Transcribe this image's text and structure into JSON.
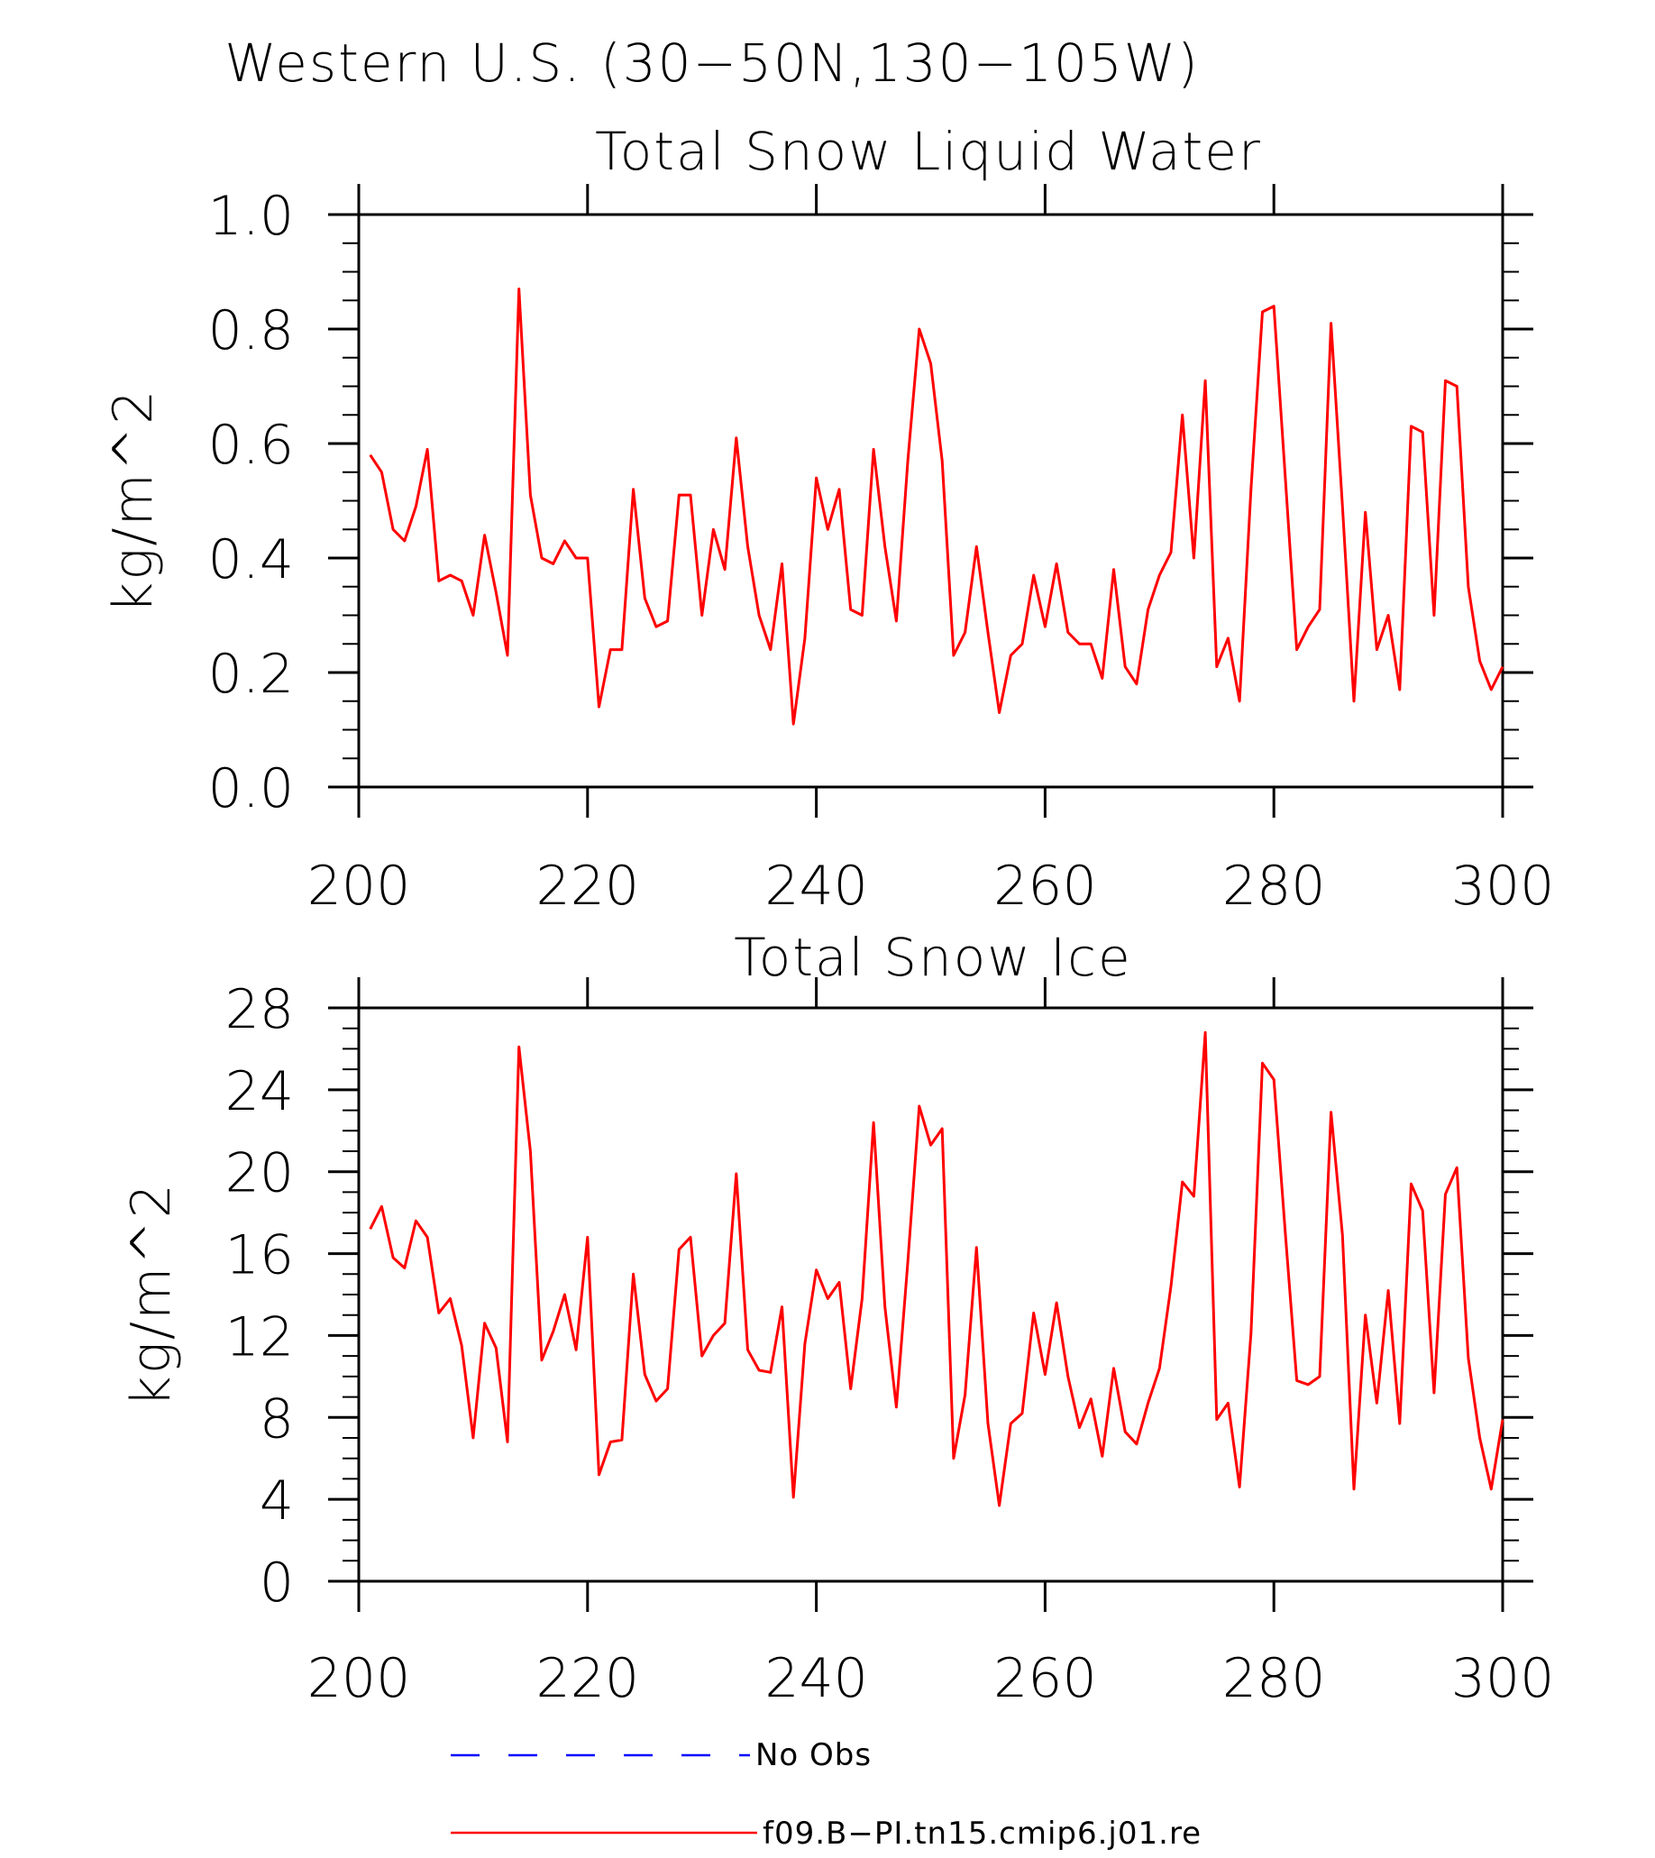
{
  "figure": {
    "title": "Western U.S. (30−50N,130−105W)"
  },
  "colors": {
    "model": "#ff0000",
    "obs": "#0000ff",
    "axis": "#000000"
  },
  "chart_data": [
    {
      "type": "line",
      "title": "Total Snow Liquid Water",
      "xlabel": "",
      "ylabel": "kg/m^2",
      "xlim": [
        200,
        300
      ],
      "ylim": [
        0,
        1.0
      ],
      "xticks": [
        200,
        220,
        240,
        260,
        280,
        300
      ],
      "yticks": [
        0,
        0.2,
        0.4,
        0.6,
        0.8,
        1.0
      ],
      "ytick_labels": [
        "0.0",
        "0.2",
        "0.4",
        "0.6",
        "0.8",
        "1.0"
      ],
      "x_start": 201,
      "x_step": 1,
      "series": [
        {
          "name": "f09.B−PI.tn15.cmip6.j01.re",
          "color": "#ff0000",
          "values": [
            0.58,
            0.55,
            0.45,
            0.43,
            0.49,
            0.59,
            0.36,
            0.37,
            0.36,
            0.3,
            0.44,
            0.34,
            0.23,
            0.87,
            0.51,
            0.4,
            0.39,
            0.43,
            0.4,
            0.4,
            0.14,
            0.24,
            0.24,
            0.52,
            0.33,
            0.28,
            0.29,
            0.51,
            0.51,
            0.3,
            0.45,
            0.38,
            0.61,
            0.42,
            0.3,
            0.24,
            0.39,
            0.11,
            0.26,
            0.54,
            0.45,
            0.52,
            0.31,
            0.3,
            0.59,
            0.42,
            0.29,
            0.57,
            0.8,
            0.74,
            0.57,
            0.23,
            0.27,
            0.42,
            0.27,
            0.13,
            0.23,
            0.25,
            0.37,
            0.28,
            0.39,
            0.27,
            0.25,
            0.25,
            0.19,
            0.38,
            0.21,
            0.18,
            0.31,
            0.37,
            0.41,
            0.65,
            0.4,
            0.71,
            0.21,
            0.26,
            0.15,
            0.52,
            0.83,
            0.84,
            0.54,
            0.24,
            0.28,
            0.31,
            0.81,
            0.49,
            0.15,
            0.48,
            0.24,
            0.3,
            0.17,
            0.63,
            0.62,
            0.3,
            0.71,
            0.7,
            0.35,
            0.22,
            0.17,
            0.21
          ]
        }
      ]
    },
    {
      "type": "line",
      "title": "Total Snow Ice",
      "xlabel": "",
      "ylabel": "kg/m^2",
      "xlim": [
        200,
        300
      ],
      "ylim": [
        0,
        28
      ],
      "xticks": [
        200,
        220,
        240,
        260,
        280,
        300
      ],
      "yticks": [
        0,
        4,
        8,
        12,
        16,
        20,
        24,
        28
      ],
      "ytick_labels": [
        "0",
        "4",
        "8",
        "12",
        "16",
        "20",
        "24",
        "28"
      ],
      "x_start": 201,
      "x_step": 1,
      "series": [
        {
          "name": "f09.B−PI.tn15.cmip6.j01.re",
          "color": "#ff0000",
          "values": [
            17.2,
            18.3,
            15.8,
            15.3,
            17.6,
            16.8,
            13.1,
            13.8,
            11.5,
            7.0,
            12.6,
            11.4,
            6.8,
            26.1,
            21.0,
            10.8,
            12.2,
            14.0,
            11.3,
            16.8,
            5.2,
            6.8,
            6.9,
            15.0,
            10.1,
            8.8,
            9.4,
            16.2,
            16.8,
            11.0,
            12.0,
            12.6,
            19.9,
            11.3,
            10.3,
            10.2,
            13.4,
            4.1,
            11.6,
            15.2,
            13.8,
            14.6,
            9.4,
            13.8,
            22.4,
            13.4,
            8.5,
            15.6,
            23.2,
            21.3,
            22.1,
            6.0,
            9.1,
            16.3,
            7.7,
            3.7,
            7.7,
            8.2,
            13.1,
            10.1,
            13.6,
            10.0,
            7.5,
            8.9,
            6.1,
            10.4,
            7.3,
            6.7,
            8.7,
            10.4,
            14.4,
            19.5,
            18.8,
            26.8,
            7.9,
            8.7,
            4.6,
            12.1,
            25.3,
            24.5,
            17.0,
            9.8,
            9.6,
            10.0,
            22.9,
            16.9,
            4.5,
            13.0,
            8.7,
            14.2,
            7.7,
            19.4,
            18.1,
            9.2,
            18.9,
            20.2,
            10.9,
            7.0,
            4.5,
            7.9
          ]
        }
      ]
    }
  ],
  "legend": {
    "placement": "bottom",
    "entries": [
      {
        "label": "No Obs",
        "color": "#0000ff",
        "dash": "dashed"
      },
      {
        "label": "f09.B−PI.tn15.cmip6.j01.re",
        "color": "#ff0000",
        "dash": "solid"
      }
    ]
  }
}
